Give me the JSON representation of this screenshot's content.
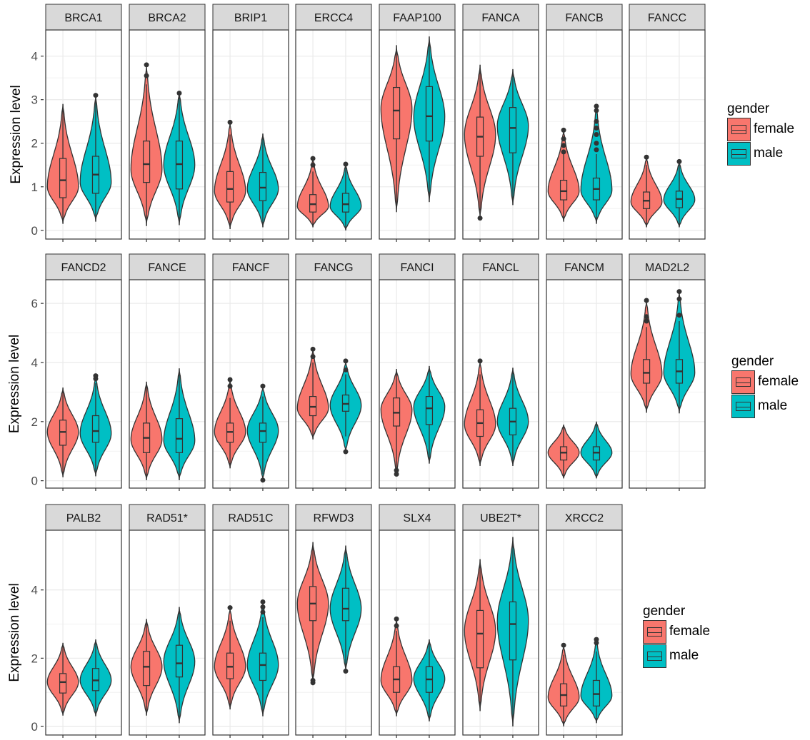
{
  "chart_data": {
    "type": "violin",
    "ylabel": "Expression level",
    "grid": true,
    "legend": {
      "title": "gender",
      "position": "right",
      "entries": [
        {
          "name": "female",
          "color": "#F8766D"
        },
        {
          "name": "male",
          "color": "#00BFC4"
        }
      ]
    },
    "rows": [
      {
        "ylim": [
          -0.2,
          4.6
        ],
        "yticks": [
          0,
          1,
          2,
          3,
          4
        ],
        "panels": [
          {
            "gene": "BRCA1",
            "female": {
              "min": 0.15,
              "q1": 0.75,
              "median": 1.15,
              "q3": 1.65,
              "max": 2.9,
              "mode": 1.0,
              "outliers": []
            },
            "male": {
              "min": 0.2,
              "q1": 0.85,
              "median": 1.28,
              "q3": 1.7,
              "max": 3.1,
              "mode": 1.1,
              "outliers": [
                3.1
              ]
            }
          },
          {
            "gene": "BRCA2",
            "female": {
              "min": 0.1,
              "q1": 1.1,
              "median": 1.52,
              "q3": 2.05,
              "max": 3.35,
              "mode": 1.4,
              "outliers": [
                3.55,
                3.8
              ]
            },
            "male": {
              "min": 0.12,
              "q1": 0.95,
              "median": 1.52,
              "q3": 2.05,
              "max": 3.2,
              "mode": 1.5,
              "outliers": [
                3.15
              ]
            }
          },
          {
            "gene": "BRIP1",
            "female": {
              "min": 0.03,
              "q1": 0.65,
              "median": 0.95,
              "q3": 1.35,
              "max": 2.2,
              "mode": 0.9,
              "outliers": [
                2.48
              ]
            },
            "male": {
              "min": 0.07,
              "q1": 0.68,
              "median": 0.98,
              "q3": 1.33,
              "max": 2.22,
              "mode": 0.95,
              "outliers": []
            }
          },
          {
            "gene": "ERCC4",
            "female": {
              "min": 0.07,
              "q1": 0.42,
              "median": 0.6,
              "q3": 0.82,
              "max": 1.35,
              "mode": 0.55,
              "outliers": [
                1.5,
                1.65
              ]
            },
            "male": {
              "min": 0.0,
              "q1": 0.42,
              "median": 0.6,
              "q3": 0.85,
              "max": 1.45,
              "mode": 0.55,
              "outliers": [
                1.52
              ]
            }
          },
          {
            "gene": "FAAP100",
            "female": {
              "min": 0.42,
              "q1": 2.1,
              "median": 2.75,
              "q3": 3.28,
              "max": 4.25,
              "mode": 2.8,
              "outliers": []
            },
            "male": {
              "min": 0.65,
              "q1": 2.05,
              "median": 2.62,
              "q3": 3.3,
              "max": 4.45,
              "mode": 2.6,
              "outliers": []
            }
          },
          {
            "gene": "FANCA",
            "female": {
              "min": 0.45,
              "q1": 1.7,
              "median": 2.15,
              "q3": 2.6,
              "max": 3.8,
              "mode": 2.2,
              "outliers": [
                0.28
              ]
            },
            "male": {
              "min": 0.58,
              "q1": 1.78,
              "median": 2.35,
              "q3": 2.82,
              "max": 3.7,
              "mode": 2.4,
              "outliers": []
            }
          },
          {
            "gene": "FANCB",
            "female": {
              "min": 0.2,
              "q1": 0.7,
              "median": 0.9,
              "q3": 1.15,
              "max": 1.75,
              "mode": 0.9,
              "outliers": [
                1.8,
                1.95,
                2.1,
                2.3
              ]
            },
            "male": {
              "min": 0.15,
              "q1": 0.7,
              "median": 0.95,
              "q3": 1.2,
              "max": 1.75,
              "mode": 0.92,
              "outliers": [
                1.85,
                2.0,
                2.2,
                2.35,
                2.5,
                2.75,
                2.85
              ]
            }
          },
          {
            "gene": "FANCC",
            "female": {
              "min": 0.07,
              "q1": 0.5,
              "median": 0.68,
              "q3": 0.88,
              "max": 1.5,
              "mode": 0.65,
              "outliers": [
                1.68
              ]
            },
            "male": {
              "min": 0.07,
              "q1": 0.52,
              "median": 0.72,
              "q3": 0.9,
              "max": 1.5,
              "mode": 0.7,
              "outliers": [
                1.58
              ]
            }
          }
        ]
      },
      {
        "ylim": [
          -0.25,
          6.8
        ],
        "yticks": [
          0,
          2,
          4,
          6
        ],
        "panels": [
          {
            "gene": "FANCD2",
            "female": {
              "min": 0.12,
              "q1": 1.2,
              "median": 1.65,
              "q3": 2.05,
              "max": 3.15,
              "mode": 1.65,
              "outliers": []
            },
            "male": {
              "min": 0.15,
              "q1": 1.3,
              "median": 1.68,
              "q3": 2.2,
              "max": 3.3,
              "mode": 1.6,
              "outliers": [
                3.45,
                3.55
              ]
            }
          },
          {
            "gene": "FANCE",
            "female": {
              "min": 0.02,
              "q1": 0.95,
              "median": 1.45,
              "q3": 1.95,
              "max": 3.35,
              "mode": 1.4,
              "outliers": []
            },
            "male": {
              "min": 0.02,
              "q1": 0.95,
              "median": 1.42,
              "q3": 2.1,
              "max": 3.8,
              "mode": 1.35,
              "outliers": []
            }
          },
          {
            "gene": "FANCF",
            "female": {
              "min": 0.42,
              "q1": 1.3,
              "median": 1.65,
              "q3": 1.95,
              "max": 2.8,
              "mode": 1.65,
              "outliers": [
                3.2,
                3.42
              ]
            },
            "male": {
              "min": 0.22,
              "q1": 1.3,
              "median": 1.68,
              "q3": 1.95,
              "max": 2.85,
              "mode": 1.7,
              "outliers": [
                0.02,
                3.2
              ]
            }
          },
          {
            "gene": "FANCG",
            "female": {
              "min": 1.4,
              "q1": 2.2,
              "median": 2.5,
              "q3": 2.85,
              "max": 4.0,
              "mode": 2.45,
              "outliers": [
                4.2,
                4.45
              ]
            },
            "male": {
              "min": 1.5,
              "q1": 2.35,
              "median": 2.6,
              "q3": 2.9,
              "max": 3.6,
              "mode": 2.55,
              "outliers": [
                0.98,
                3.75,
                4.05
              ]
            }
          },
          {
            "gene": "FANCI",
            "female": {
              "min": 0.4,
              "q1": 1.85,
              "median": 2.3,
              "q3": 2.8,
              "max": 3.78,
              "mode": 2.4,
              "outliers": [
                0.22,
                0.35
              ]
            },
            "male": {
              "min": 0.58,
              "q1": 1.9,
              "median": 2.45,
              "q3": 2.85,
              "max": 3.88,
              "mode": 2.5,
              "outliers": []
            }
          },
          {
            "gene": "FANCL",
            "female": {
              "min": 0.5,
              "q1": 1.5,
              "median": 1.95,
              "q3": 2.4,
              "max": 3.6,
              "mode": 1.9,
              "outliers": [
                4.05
              ]
            },
            "male": {
              "min": 0.5,
              "q1": 1.55,
              "median": 2.0,
              "q3": 2.45,
              "max": 3.82,
              "mode": 2.0,
              "outliers": []
            }
          },
          {
            "gene": "FANCM",
            "female": {
              "min": 0.08,
              "q1": 0.7,
              "median": 0.95,
              "q3": 1.15,
              "max": 1.9,
              "mode": 0.95,
              "outliers": []
            },
            "male": {
              "min": 0.08,
              "q1": 0.7,
              "median": 0.95,
              "q3": 1.15,
              "max": 2.0,
              "mode": 0.95,
              "outliers": []
            }
          },
          {
            "gene": "MAD2L2",
            "female": {
              "min": 2.3,
              "q1": 3.3,
              "median": 3.65,
              "q3": 4.1,
              "max": 5.2,
              "mode": 3.6,
              "outliers": [
                5.4,
                5.55,
                6.1
              ]
            },
            "male": {
              "min": 2.28,
              "q1": 3.3,
              "median": 3.7,
              "q3": 4.1,
              "max": 5.4,
              "mode": 3.65,
              "outliers": [
                5.6,
                6.15,
                6.4
              ]
            }
          }
        ]
      },
      {
        "ylim": [
          -0.25,
          5.75
        ],
        "yticks": [
          0,
          2,
          4
        ],
        "panels": [
          {
            "gene": "PALB2",
            "female": {
              "min": 0.32,
              "q1": 0.98,
              "median": 1.3,
              "q3": 1.55,
              "max": 2.45,
              "mode": 1.3,
              "outliers": []
            },
            "male": {
              "min": 0.3,
              "q1": 1.05,
              "median": 1.35,
              "q3": 1.7,
              "max": 2.55,
              "mode": 1.35,
              "outliers": []
            }
          },
          {
            "gene": "RAD51*",
            "female": {
              "min": 0.32,
              "q1": 1.2,
              "median": 1.75,
              "q3": 2.2,
              "max": 3.15,
              "mode": 1.75,
              "outliers": []
            },
            "male": {
              "min": 0.1,
              "q1": 1.45,
              "median": 1.85,
              "q3": 2.38,
              "max": 3.5,
              "mode": 1.9,
              "outliers": []
            }
          },
          {
            "gene": "RAD51C",
            "female": {
              "min": 0.5,
              "q1": 1.4,
              "median": 1.75,
              "q3": 2.15,
              "max": 3.1,
              "mode": 1.75,
              "outliers": [
                3.48
              ]
            },
            "male": {
              "min": 0.3,
              "q1": 1.35,
              "median": 1.8,
              "q3": 2.15,
              "max": 3.2,
              "mode": 1.8,
              "outliers": [
                3.35,
                3.5,
                3.65
              ]
            }
          },
          {
            "gene": "RFWD3",
            "female": {
              "min": 1.4,
              "q1": 3.1,
              "median": 3.6,
              "q3": 4.1,
              "max": 5.4,
              "mode": 3.6,
              "outliers": [
                1.28,
                1.35
              ]
            },
            "male": {
              "min": 1.75,
              "q1": 3.1,
              "median": 3.45,
              "q3": 4.05,
              "max": 5.3,
              "mode": 3.45,
              "outliers": [
                1.62
              ]
            }
          },
          {
            "gene": "SLX4",
            "female": {
              "min": 0.3,
              "q1": 1.0,
              "median": 1.38,
              "q3": 1.75,
              "max": 2.8,
              "mode": 1.35,
              "outliers": [
                2.95,
                3.15
              ]
            },
            "male": {
              "min": 0.15,
              "q1": 1.0,
              "median": 1.38,
              "q3": 1.75,
              "max": 2.55,
              "mode": 1.4,
              "outliers": []
            }
          },
          {
            "gene": "UBE2T*",
            "female": {
              "min": 0.45,
              "q1": 1.72,
              "median": 2.72,
              "q3": 3.4,
              "max": 4.9,
              "mode": 2.8,
              "outliers": []
            },
            "male": {
              "min": 0.0,
              "q1": 1.95,
              "median": 3.0,
              "q3": 3.65,
              "max": 5.55,
              "mode": 3.1,
              "outliers": []
            }
          },
          {
            "gene": "XRCC2",
            "female": {
              "min": 0.0,
              "q1": 0.6,
              "median": 0.92,
              "q3": 1.25,
              "max": 2.1,
              "mode": 0.85,
              "outliers": [
                2.38
              ]
            },
            "male": {
              "min": 0.1,
              "q1": 0.6,
              "median": 0.95,
              "q3": 1.35,
              "max": 2.2,
              "mode": 0.9,
              "outliers": [
                2.45,
                2.55
              ]
            }
          }
        ]
      }
    ]
  }
}
